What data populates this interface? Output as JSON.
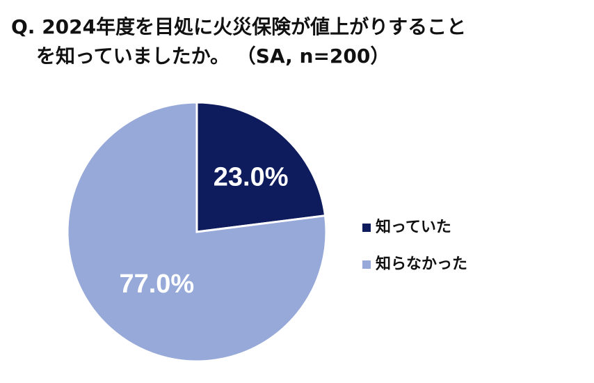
{
  "chart_data": {
    "type": "pie",
    "title": [
      "Q. 2024年度を目処に火災保険が値上がりすること",
      "を知っていましたか。 （SA, n=200）"
    ],
    "categories": [
      "知っていた",
      "知らなかった"
    ],
    "values": [
      23.0,
      77.0
    ],
    "value_labels": [
      "23.0%",
      "77.0%"
    ],
    "colors": [
      "#0e1c5e",
      "#97a9d9"
    ],
    "legend": "right"
  }
}
